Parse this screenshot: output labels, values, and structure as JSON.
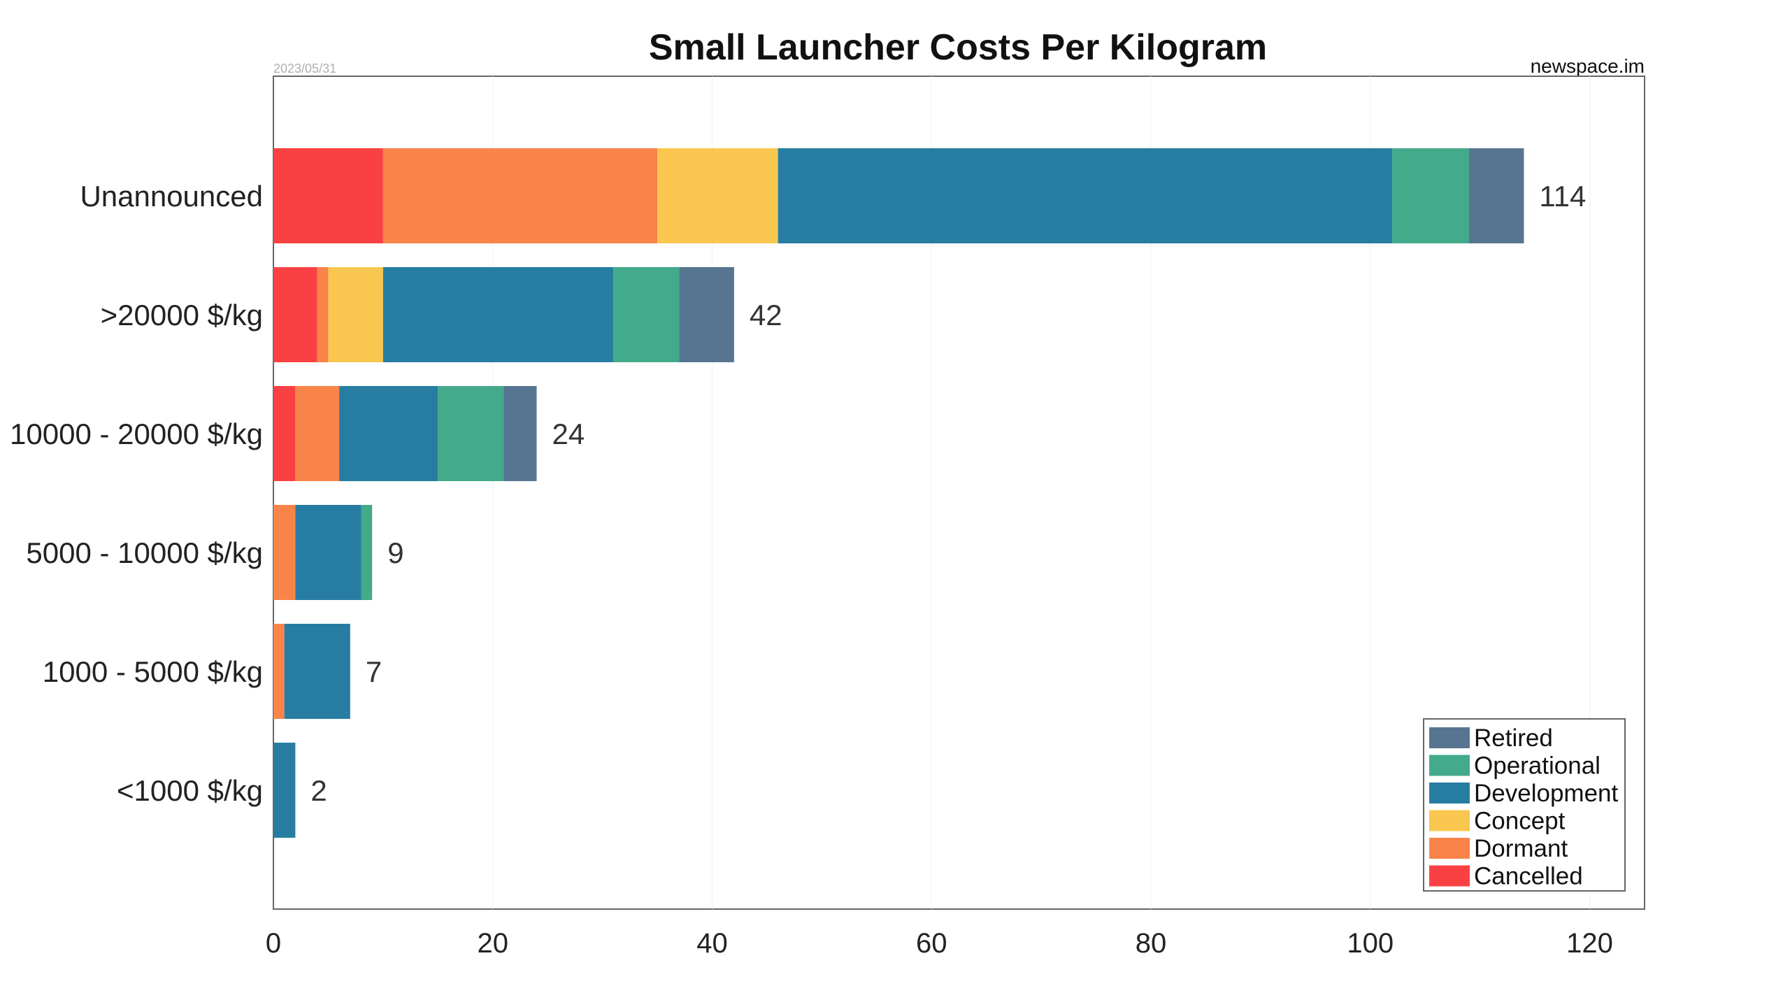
{
  "chart_data": {
    "type": "bar",
    "orientation": "horizontal",
    "stacked": true,
    "title": "Small Launcher Costs Per Kilogram",
    "date": "2023/05/31",
    "source": "newspace.im",
    "categories": [
      "Unannounced",
      ">20000 $/kg",
      "10000 - 20000 $/kg",
      "5000 - 10000 $/kg",
      "1000 - 5000 $/kg",
      "<1000 $/kg"
    ],
    "series": [
      {
        "name": "Cancelled",
        "color": "#f94144",
        "values": [
          10,
          4,
          2,
          0,
          0,
          0
        ]
      },
      {
        "name": "Dormant",
        "color": "#f9844a",
        "values": [
          25,
          1,
          4,
          2,
          1,
          0
        ]
      },
      {
        "name": "Concept",
        "color": "#f9c74f",
        "values": [
          11,
          5,
          0,
          0,
          0,
          0
        ]
      },
      {
        "name": "Development",
        "color": "#277da1",
        "values": [
          56,
          21,
          9,
          6,
          6,
          2
        ]
      },
      {
        "name": "Operational",
        "color": "#43aa8b",
        "values": [
          7,
          6,
          6,
          1,
          0,
          0
        ]
      },
      {
        "name": "Retired",
        "color": "#577590",
        "values": [
          5,
          5,
          3,
          0,
          0,
          0
        ]
      }
    ],
    "totals": [
      "114",
      "42",
      "24",
      "9",
      "7",
      "2"
    ],
    "xlim": [
      0,
      125
    ],
    "xticks": [
      "0",
      "20",
      "40",
      "60",
      "80",
      "100",
      "120"
    ],
    "xtick_values": [
      0,
      20,
      40,
      60,
      80,
      100,
      120
    ],
    "legend_order": [
      "Retired",
      "Operational",
      "Development",
      "Concept",
      "Dormant",
      "Cancelled"
    ],
    "legend_position": "bottom-right",
    "grid": "vertical-faint"
  }
}
